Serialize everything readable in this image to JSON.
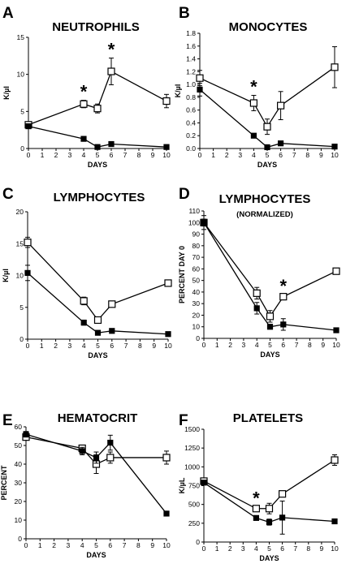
{
  "figure": {
    "colors": {
      "foreground": "#000000",
      "background": "#ffffff"
    },
    "legend": "none"
  },
  "chart_data": [
    {
      "panel": "A",
      "type": "line",
      "title": "NEUTROPHILS",
      "subtitle": "",
      "xlabel": "DAYS",
      "ylabel": "K/µl",
      "xlim": [
        0,
        10
      ],
      "ylim": [
        0,
        15
      ],
      "xticks": [
        0,
        1,
        2,
        3,
        4,
        5,
        6,
        7,
        8,
        9,
        10
      ],
      "yticks": [
        0,
        5,
        10,
        15
      ],
      "grid": false,
      "series": [
        {
          "marker": "open-square",
          "x": [
            0,
            4,
            5,
            6,
            10
          ],
          "y": [
            3.2,
            6.0,
            5.4,
            10.4,
            6.4
          ],
          "err": [
            0.4,
            0.5,
            0.6,
            1.8,
            0.9
          ]
        },
        {
          "marker": "filled-square",
          "x": [
            0,
            4,
            5,
            6,
            10
          ],
          "y": [
            3.0,
            1.3,
            0.2,
            0.6,
            0.2
          ],
          "err": [
            0.3,
            0.2,
            0.1,
            0.1,
            0.05
          ]
        }
      ],
      "annotations": [
        {
          "text": "*",
          "x": 4
        },
        {
          "text": "*",
          "x": 6
        }
      ]
    },
    {
      "panel": "B",
      "type": "line",
      "title": "MONOCYTES",
      "subtitle": "",
      "xlabel": "DAYS",
      "ylabel": "K/µl",
      "xlim": [
        0,
        10
      ],
      "ylim": [
        0,
        1.8
      ],
      "xticks": [
        0,
        1,
        2,
        3,
        4,
        5,
        6,
        7,
        8,
        9,
        10
      ],
      "yticks": [
        "0.0",
        "0.2",
        "0.4",
        "0.6",
        "0.8",
        "1.0",
        "1.2",
        "1.4",
        "1.6",
        "1.8"
      ],
      "grid": false,
      "series": [
        {
          "marker": "open-square",
          "x": [
            0,
            4,
            5,
            6,
            10
          ],
          "y": [
            1.1,
            0.71,
            0.34,
            0.67,
            1.27
          ],
          "err": [
            0.12,
            0.12,
            0.12,
            0.22,
            0.32
          ]
        },
        {
          "marker": "filled-square",
          "x": [
            0,
            4,
            5,
            6,
            10
          ],
          "y": [
            0.92,
            0.2,
            0.02,
            0.08,
            0.03
          ],
          "err": [
            0.1,
            0.03,
            0.01,
            0.01,
            0.01
          ]
        }
      ],
      "annotations": [
        {
          "text": "*",
          "x": 4
        }
      ]
    },
    {
      "panel": "C",
      "type": "line",
      "title": "LYMPHOCYTES",
      "subtitle": "",
      "xlabel": "DAYS",
      "ylabel": "K/µl",
      "xlim": [
        0,
        10
      ],
      "ylim": [
        0,
        20
      ],
      "xticks": [
        0,
        1,
        2,
        3,
        4,
        5,
        6,
        7,
        8,
        9,
        10
      ],
      "yticks": [
        0,
        5,
        10,
        15,
        20
      ],
      "grid": false,
      "series": [
        {
          "marker": "open-square",
          "x": [
            0,
            4,
            5,
            6,
            10
          ],
          "y": [
            15.2,
            6.0,
            3.0,
            5.5,
            8.8
          ],
          "err": [
            0.8,
            0.6,
            0.5,
            0.4,
            0.4
          ]
        },
        {
          "marker": "filled-square",
          "x": [
            0,
            4,
            5,
            6,
            10
          ],
          "y": [
            10.4,
            2.6,
            1.0,
            1.3,
            0.8
          ],
          "err": [
            1.2,
            0.4,
            0.2,
            0.3,
            0.1
          ]
        }
      ],
      "annotations": []
    },
    {
      "panel": "D",
      "type": "line",
      "title": "LYMPHOCYTES",
      "subtitle": "(NORMALIZED)",
      "xlabel": "DAYS",
      "ylabel": "PERCENT DAY 0",
      "xlim": [
        0,
        10
      ],
      "ylim": [
        0,
        110
      ],
      "xticks": [
        0,
        1,
        2,
        3,
        4,
        5,
        6,
        7,
        8,
        9,
        10
      ],
      "yticks": [
        0,
        10,
        20,
        30,
        40,
        50,
        60,
        70,
        80,
        90,
        100,
        110
      ],
      "grid": false,
      "series": [
        {
          "marker": "open-square",
          "x": [
            0,
            4,
            5,
            6,
            10
          ],
          "y": [
            100,
            39,
            19,
            36,
            58
          ],
          "err": [
            3,
            5,
            5,
            2,
            2
          ]
        },
        {
          "marker": "filled-square",
          "x": [
            0,
            4,
            5,
            6,
            10
          ],
          "y": [
            100,
            26,
            10,
            12,
            7
          ],
          "err": [
            6,
            5,
            2,
            5,
            1
          ]
        }
      ],
      "annotations": [
        {
          "text": "*",
          "x": 6
        }
      ]
    },
    {
      "panel": "E",
      "type": "line",
      "title": "HEMATOCRIT",
      "subtitle": "",
      "xlabel": "DAYS",
      "ylabel": "PERCENT",
      "xlim": [
        0,
        10
      ],
      "ylim": [
        0,
        60
      ],
      "xticks": [
        0,
        1,
        2,
        3,
        4,
        5,
        6,
        7,
        8,
        9,
        10
      ],
      "yticks": [
        0,
        10,
        20,
        30,
        40,
        50,
        60
      ],
      "grid": false,
      "series": [
        {
          "marker": "open-square",
          "x": [
            0,
            4,
            5,
            6,
            10
          ],
          "y": [
            54.5,
            48.5,
            40,
            43.5,
            43.5
          ],
          "err": [
            1,
            1.5,
            5,
            3,
            3.5
          ]
        },
        {
          "marker": "filled-square",
          "x": [
            0,
            4,
            5,
            6,
            10
          ],
          "y": [
            56,
            47,
            43.5,
            51.5,
            13.5
          ],
          "err": [
            1.5,
            2,
            3,
            4,
            0.5
          ]
        }
      ],
      "annotations": []
    },
    {
      "panel": "F",
      "type": "line",
      "title": "PLATELETS",
      "subtitle": "",
      "xlabel": "DAYS",
      "ylabel": "K/µL",
      "xlim": [
        0,
        10
      ],
      "ylim": [
        0,
        1500
      ],
      "xticks": [
        0,
        1,
        2,
        3,
        4,
        5,
        6,
        7,
        8,
        9,
        10
      ],
      "yticks": [
        0,
        250,
        500,
        750,
        1000,
        1250,
        1500
      ],
      "grid": false,
      "series": [
        {
          "marker": "open-square",
          "x": [
            0,
            4,
            5,
            6,
            10
          ],
          "y": [
            810,
            445,
            445,
            640,
            1090
          ],
          "err": [
            30,
            25,
            70,
            25,
            70
          ]
        },
        {
          "marker": "filled-square",
          "x": [
            0,
            4,
            5,
            6,
            10
          ],
          "y": [
            790,
            320,
            265,
            325,
            275
          ],
          "err": [
            25,
            20,
            40,
            220,
            15
          ]
        }
      ],
      "annotations": [
        {
          "text": "*",
          "x": 4
        }
      ]
    }
  ]
}
